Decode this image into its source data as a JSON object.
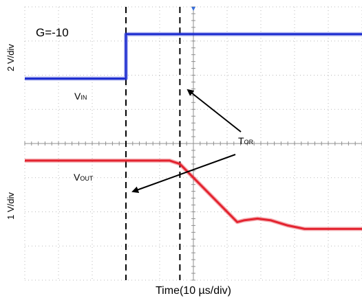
{
  "chart_data": {
    "type": "line",
    "title": "",
    "xlabel": "Time(10 µs/div)",
    "x_unit_per_div": "10 µs",
    "divisions": {
      "x": 10,
      "y": 8
    },
    "grid": true,
    "axes": [
      {
        "side": "left-top",
        "label": "2 V/div"
      },
      {
        "side": "left-bottom",
        "label": "1 V/div"
      }
    ],
    "annotations": {
      "gain": "G=-10",
      "vin": {
        "main": "V",
        "sub": "IN"
      },
      "vout": {
        "main": "V",
        "sub": "OUT"
      },
      "tor": {
        "main": "T",
        "sub": "OR"
      }
    },
    "markers_div": [
      3.0,
      4.6
    ],
    "series": [
      {
        "color": "#1f2fd0",
        "x_div": [
          0,
          3.0,
          3.0,
          10
        ],
        "y_div": [
          1.9,
          1.9,
          3.2,
          3.2
        ]
      },
      {
        "color": "#e3232f",
        "x_div": [
          0,
          4.3,
          4.6,
          6.3,
          6.5,
          6.9,
          7.3,
          7.8,
          8.3,
          9.0,
          10
        ],
        "y_div": [
          -0.5,
          -0.5,
          -0.6,
          -2.3,
          -2.25,
          -2.2,
          -2.25,
          -2.4,
          -2.5,
          -2.5,
          -2.5
        ]
      }
    ]
  }
}
